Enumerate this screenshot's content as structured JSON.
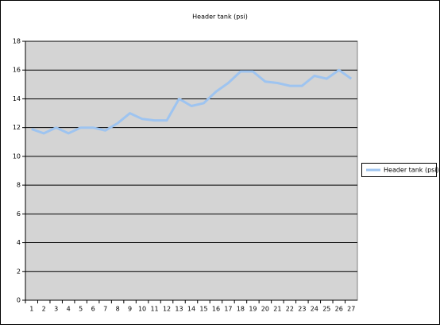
{
  "chart_data": {
    "type": "line",
    "title": "Header tank (psi)",
    "categories": [
      "1",
      "2",
      "3",
      "4",
      "5",
      "6",
      "7",
      "8",
      "9",
      "10",
      "11",
      "12",
      "13",
      "14",
      "15",
      "16",
      "17",
      "18",
      "19",
      "20",
      "21",
      "22",
      "23",
      "24",
      "25",
      "26",
      "27"
    ],
    "series": [
      {
        "name": "Header tank (psi)",
        "color": "#9ec4f0",
        "values": [
          11.9,
          11.6,
          12.0,
          11.6,
          12.0,
          12.0,
          11.8,
          12.3,
          13.0,
          12.6,
          12.5,
          12.5,
          14.0,
          13.5,
          13.7,
          14.5,
          15.1,
          15.9,
          15.9,
          15.2,
          15.1,
          14.9,
          14.9,
          15.6,
          15.4,
          16.0,
          15.4
        ]
      }
    ],
    "ylim": [
      0,
      18
    ],
    "yticks": [
      0,
      2,
      4,
      6,
      8,
      10,
      12,
      14,
      16,
      18
    ],
    "grid": true,
    "legend": "right"
  }
}
